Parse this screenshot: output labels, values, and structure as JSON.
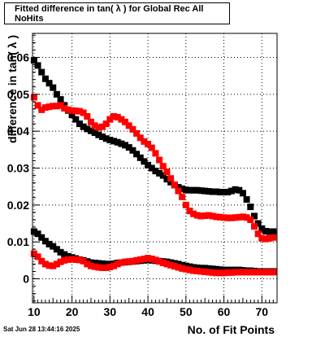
{
  "chart_data": {
    "type": "scatter",
    "title": "Fitted difference in tan( λ ) for Global Rec All NoHits",
    "xlabel": "No. of Fit Points",
    "ylabel": "difference in tan( λ )",
    "xlim": [
      9.6,
      74.0
    ],
    "ylim": [
      -0.0065,
      0.0665
    ],
    "x_ticks": [
      10,
      20,
      30,
      40,
      50,
      60,
      70
    ],
    "y_ticks": [
      0,
      0.01,
      0.02,
      0.03,
      0.04,
      0.05,
      0.06
    ],
    "y_tick_labels": [
      "0",
      "0.01",
      "0.02",
      "0.03",
      "0.04",
      "0.05",
      "0.06"
    ],
    "grid": true,
    "legend": "none",
    "series": [
      {
        "color": "#000000",
        "marker": "square",
        "x": [
          10,
          11,
          12,
          13,
          14,
          15,
          16,
          17,
          18,
          19,
          20,
          21,
          22,
          23,
          24,
          25,
          26,
          27,
          28,
          29,
          30,
          31,
          32,
          33,
          34,
          35,
          36,
          37,
          38,
          39,
          40,
          41,
          42,
          43,
          44,
          45,
          46,
          47,
          48,
          49,
          50,
          51,
          52,
          53,
          54,
          55,
          56,
          57,
          58,
          59,
          60,
          61,
          62,
          63,
          64,
          65,
          66,
          67,
          68,
          69,
          70,
          71,
          72,
          73
        ],
        "y": [
          0.0592,
          0.0578,
          0.056,
          0.0542,
          0.053,
          0.0518,
          0.05,
          0.0486,
          0.047,
          0.0456,
          0.0444,
          0.0432,
          0.042,
          0.0412,
          0.0406,
          0.0401,
          0.0396,
          0.039,
          0.0385,
          0.038,
          0.0376,
          0.0373,
          0.037,
          0.0366,
          0.0362,
          0.0356,
          0.0348,
          0.0338,
          0.0328,
          0.0318,
          0.0308,
          0.03,
          0.0292,
          0.0286,
          0.028,
          0.027,
          0.0262,
          0.0254,
          0.0248,
          0.0244,
          0.0241,
          0.024,
          0.024,
          0.024,
          0.0239,
          0.0238,
          0.0237,
          0.0236,
          0.0236,
          0.0235,
          0.0235,
          0.0235,
          0.0238,
          0.0242,
          0.024,
          0.0232,
          0.0215,
          0.0195,
          0.017,
          0.015,
          0.0136,
          0.0129,
          0.0128,
          0.0128
        ]
      },
      {
        "color": "#ff0000",
        "marker": "square",
        "x": [
          10,
          11,
          12,
          13,
          14,
          15,
          16,
          17,
          18,
          19,
          20,
          21,
          22,
          23,
          24,
          25,
          26,
          27,
          28,
          29,
          30,
          31,
          32,
          33,
          34,
          35,
          36,
          37,
          38,
          39,
          40,
          41,
          42,
          43,
          44,
          45,
          46,
          47,
          48,
          49,
          50,
          51,
          52,
          53,
          54,
          55,
          56,
          57,
          58,
          59,
          60,
          61,
          62,
          63,
          64,
          65,
          66,
          67,
          68,
          69,
          70,
          71,
          72,
          73
        ],
        "y": [
          0.0492,
          0.047,
          0.0458,
          0.0464,
          0.0466,
          0.0468,
          0.0468,
          0.047,
          0.0462,
          0.0458,
          0.0456,
          0.0455,
          0.0454,
          0.045,
          0.044,
          0.0425,
          0.0415,
          0.041,
          0.0412,
          0.042,
          0.0432,
          0.044,
          0.0438,
          0.0432,
          0.0425,
          0.0415,
          0.0405,
          0.0394,
          0.0382,
          0.0372,
          0.0365,
          0.0355,
          0.034,
          0.0322,
          0.0305,
          0.029,
          0.0272,
          0.0255,
          0.0238,
          0.0222,
          0.02,
          0.0184,
          0.0176,
          0.0172,
          0.017,
          0.0171,
          0.0172,
          0.017,
          0.0168,
          0.0167,
          0.0166,
          0.0165,
          0.0165,
          0.0166,
          0.0167,
          0.0168,
          0.0166,
          0.016,
          0.0142,
          0.0122,
          0.011,
          0.0108,
          0.011,
          0.0112
        ]
      },
      {
        "color": "#000000",
        "marker": "square",
        "x": [
          10,
          11,
          12,
          13,
          14,
          15,
          16,
          17,
          18,
          19,
          20,
          21,
          22,
          23,
          24,
          25,
          26,
          27,
          28,
          29,
          30,
          31,
          32,
          33,
          34,
          35,
          36,
          37,
          38,
          39,
          40,
          41,
          42,
          43,
          44,
          45,
          46,
          47,
          48,
          49,
          50,
          51,
          52,
          53,
          54,
          55,
          56,
          57,
          58,
          59,
          60,
          61,
          62,
          63,
          64,
          65,
          66,
          67,
          68,
          69,
          70,
          71,
          72,
          73
        ],
        "y": [
          0.0128,
          0.0122,
          0.0112,
          0.0102,
          0.0094,
          0.0088,
          0.008,
          0.0072,
          0.0066,
          0.0061,
          0.0058,
          0.0055,
          0.0052,
          0.005,
          0.0047,
          0.0044,
          0.0043,
          0.0042,
          0.0041,
          0.004,
          0.004,
          0.0041,
          0.0043,
          0.0044,
          0.0045,
          0.0046,
          0.0047,
          0.0048,
          0.0049,
          0.005,
          0.0051,
          0.005,
          0.0049,
          0.0048,
          0.0047,
          0.0046,
          0.0044,
          0.0042,
          0.004,
          0.0037,
          0.0035,
          0.0033,
          0.0031,
          0.003,
          0.0029,
          0.0029,
          0.0028,
          0.0027,
          0.0026,
          0.0025,
          0.0024,
          0.0024,
          0.0024,
          0.0024,
          0.0024,
          0.0023,
          0.0022,
          0.0022,
          0.0021,
          0.002,
          0.002,
          0.002,
          0.002,
          0.002
        ]
      },
      {
        "color": "#ff0000",
        "marker": "square",
        "x": [
          10,
          11,
          12,
          13,
          14,
          15,
          16,
          17,
          18,
          19,
          20,
          21,
          22,
          23,
          24,
          25,
          26,
          27,
          28,
          29,
          30,
          31,
          32,
          33,
          34,
          35,
          36,
          37,
          38,
          39,
          40,
          41,
          42,
          43,
          44,
          45,
          46,
          47,
          48,
          49,
          50,
          51,
          52,
          53,
          54,
          55,
          56,
          57,
          58,
          59,
          60,
          61,
          62,
          63,
          64,
          65,
          66,
          67,
          68,
          69,
          70,
          71,
          72,
          73
        ],
        "y": [
          0.0068,
          0.006,
          0.0048,
          0.004,
          0.0036,
          0.0035,
          0.004,
          0.0046,
          0.005,
          0.0052,
          0.0053,
          0.0052,
          0.0051,
          0.0048,
          0.004,
          0.0035,
          0.0033,
          0.0031,
          0.003,
          0.003,
          0.0032,
          0.0035,
          0.004,
          0.0044,
          0.0046,
          0.0047,
          0.0048,
          0.005,
          0.0052,
          0.0054,
          0.0056,
          0.0054,
          0.0051,
          0.0047,
          0.0043,
          0.004,
          0.0037,
          0.0034,
          0.0031,
          0.0028,
          0.0026,
          0.0024,
          0.0022,
          0.0021,
          0.002,
          0.0019,
          0.0018,
          0.0017,
          0.0016,
          0.0016,
          0.0016,
          0.0017,
          0.0017,
          0.0018,
          0.0018,
          0.0018,
          0.0018,
          0.0018,
          0.0018,
          0.0018,
          0.0018,
          0.0018,
          0.0018,
          0.0018
        ]
      }
    ]
  },
  "footer": {
    "timestamp": "Sat Jun 28 13:44:16 2025"
  }
}
